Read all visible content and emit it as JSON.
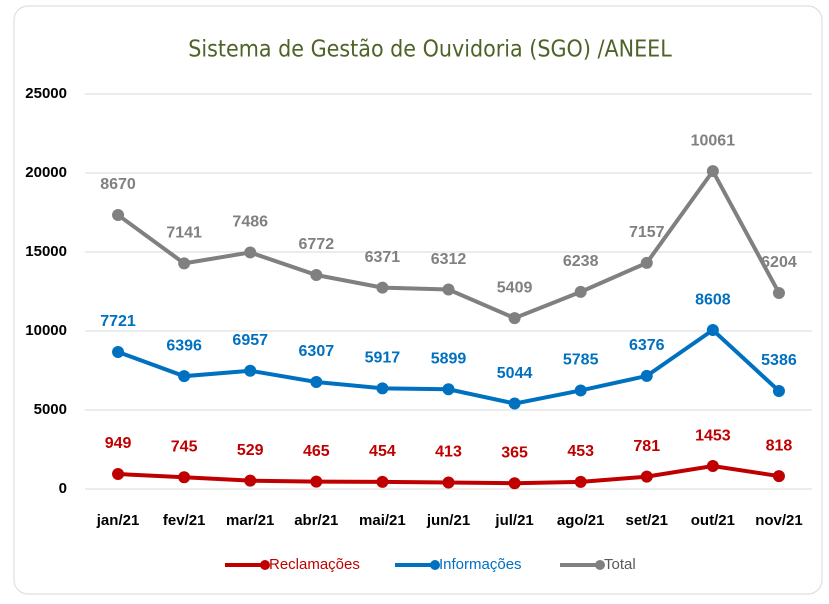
{
  "chart_data": {
    "type": "line",
    "stacked": true,
    "title": "Sistema de Gestão de Ouvidoria (SGO) /ANEEL",
    "categories": [
      "jan/21",
      "fev/21",
      "mar/21",
      "abr/21",
      "mai/21",
      "jun/21",
      "jul/21",
      "ago/21",
      "set/21",
      "out/21",
      "nov/21"
    ],
    "series": [
      {
        "name": "Reclamações",
        "color": "#c00000",
        "values": [
          949,
          745,
          529,
          465,
          454,
          413,
          365,
          453,
          781,
          1453,
          818
        ]
      },
      {
        "name": "Informações",
        "color": "#0070c0",
        "values": [
          7721,
          6396,
          6957,
          6307,
          5917,
          5899,
          5044,
          5785,
          6376,
          8608,
          5386
        ]
      },
      {
        "name": "Total",
        "color": "#808080",
        "values": [
          8670,
          7141,
          7486,
          6772,
          6371,
          6312,
          5409,
          6238,
          7157,
          10061,
          6204
        ]
      }
    ],
    "ylim": [
      0,
      25000
    ],
    "yticks": [
      0,
      5000,
      10000,
      15000,
      20000,
      25000
    ],
    "grid": true,
    "legend": "bottom"
  }
}
